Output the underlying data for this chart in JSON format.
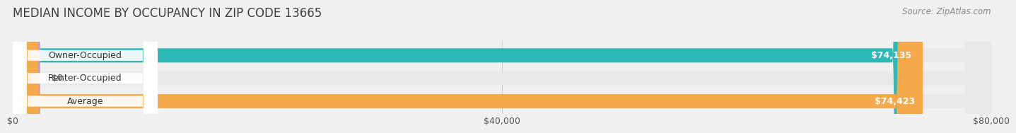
{
  "title": "MEDIAN INCOME BY OCCUPANCY IN ZIP CODE 13665",
  "source": "Source: ZipAtlas.com",
  "categories": [
    "Owner-Occupied",
    "Renter-Occupied",
    "Average"
  ],
  "values": [
    74135,
    0,
    74423
  ],
  "bar_colors": [
    "#2db8b8",
    "#b8a0cc",
    "#f5a94a"
  ],
  "value_labels": [
    "$74,135",
    "$0",
    "$74,423"
  ],
  "xlim": [
    0,
    80000
  ],
  "xtick_labels": [
    "$0",
    "$40,000",
    "$80,000"
  ],
  "xtick_values": [
    0,
    40000,
    80000
  ],
  "bg_color": "#f0f0f0",
  "bar_bg_color": "#dcdcdc",
  "bar_bg_color2": "#e8e8e8",
  "title_fontsize": 12,
  "source_fontsize": 8.5,
  "bar_label_fontsize": 9,
  "value_label_fontsize": 9,
  "tick_fontsize": 9
}
